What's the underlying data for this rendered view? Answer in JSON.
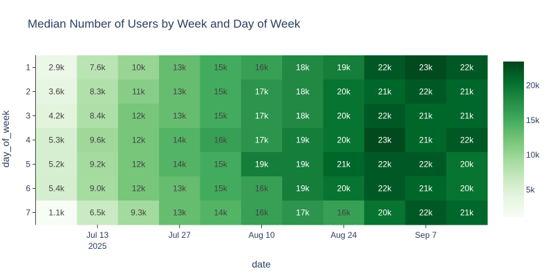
{
  "chart_data": {
    "type": "heatmap",
    "title": "Median Number of Users by Week and Day of Week",
    "xlabel": "date",
    "ylabel": "day_of_week",
    "x": [
      "2025-07-06",
      "2025-07-13",
      "2025-07-20",
      "2025-07-27",
      "2025-08-03",
      "2025-08-10",
      "2025-08-17",
      "2025-08-24",
      "2025-08-31",
      "2025-09-07",
      "2025-09-14"
    ],
    "x_tick_labels": [
      {
        "at": "2025-07-13",
        "label": "Jul 13",
        "sublabel": "2025"
      },
      {
        "at": "2025-07-27",
        "label": "Jul 27"
      },
      {
        "at": "2025-08-10",
        "label": "Aug 10"
      },
      {
        "at": "2025-08-24",
        "label": "Aug 24"
      },
      {
        "at": "2025-09-07",
        "label": "Sep 7"
      }
    ],
    "y": [
      "1",
      "2",
      "3",
      "4",
      "5",
      "6",
      "7"
    ],
    "z": [
      [
        2900,
        7600,
        10000,
        13000,
        15000,
        16000,
        18000,
        19000,
        22000,
        23000,
        22000
      ],
      [
        3600,
        8300,
        11000,
        13000,
        15000,
        17000,
        18000,
        20000,
        21000,
        22000,
        21000
      ],
      [
        4200,
        8400,
        12000,
        13000,
        15000,
        17000,
        18000,
        20000,
        22000,
        21000,
        21000
      ],
      [
        5300,
        9600,
        12000,
        14000,
        16000,
        17000,
        19000,
        20000,
        23000,
        21000,
        22000
      ],
      [
        5200,
        9200,
        12000,
        14000,
        15000,
        19000,
        19000,
        21000,
        22000,
        22000,
        20000
      ],
      [
        5400,
        9000,
        12000,
        13000,
        15000,
        16000,
        19000,
        20000,
        22000,
        21000,
        20000
      ],
      [
        1100,
        6500,
        9300,
        13000,
        14000,
        16000,
        17000,
        16000,
        20000,
        22000,
        21000
      ]
    ],
    "cell_labels": [
      [
        "2.9k",
        "7.6k",
        "10k",
        "13k",
        "15k",
        "16k",
        "18k",
        "19k",
        "22k",
        "23k",
        "22k"
      ],
      [
        "3.6k",
        "8.3k",
        "11k",
        "13k",
        "15k",
        "17k",
        "18k",
        "20k",
        "21k",
        "22k",
        "21k"
      ],
      [
        "4.2k",
        "8.4k",
        "12k",
        "13k",
        "15k",
        "17k",
        "18k",
        "20k",
        "22k",
        "21k",
        "21k"
      ],
      [
        "5.3k",
        "9.6k",
        "12k",
        "14k",
        "16k",
        "17k",
        "19k",
        "20k",
        "23k",
        "21k",
        "22k"
      ],
      [
        "5.2k",
        "9.2k",
        "12k",
        "14k",
        "15k",
        "19k",
        "19k",
        "21k",
        "22k",
        "22k",
        "20k"
      ],
      [
        "5.4k",
        "9.0k",
        "12k",
        "13k",
        "15k",
        "16k",
        "19k",
        "20k",
        "22k",
        "21k",
        "20k"
      ],
      [
        "1.1k",
        "6.5k",
        "9.3k",
        "13k",
        "14k",
        "16k",
        "17k",
        "16k",
        "20k",
        "22k",
        "21k"
      ]
    ],
    "zrange": [
      1100,
      23400
    ],
    "colorscale": "Greens",
    "colorscale_stops": [
      "#f7fcf5",
      "#e5f5e0",
      "#c7e9c0",
      "#a1d99b",
      "#74c476",
      "#41ab5d",
      "#238b45",
      "#006d2c",
      "#00441b"
    ],
    "colorbar": {
      "ticks": [
        5000,
        10000,
        15000,
        20000
      ],
      "tick_labels": [
        "5k",
        "10k",
        "15k",
        "20k"
      ]
    },
    "grid": false,
    "legend": "colorbar-right"
  }
}
